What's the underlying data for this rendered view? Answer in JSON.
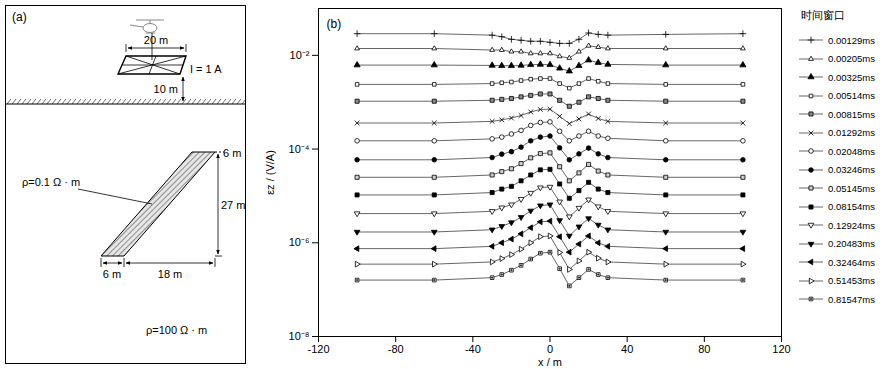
{
  "chart_data": {
    "type": "line",
    "panel_label": "(b)",
    "x_label": "x / m",
    "y_label": "εz / (V/A)",
    "legend_title": "时间窗口",
    "legend": "right",
    "log": "y",
    "grid": false,
    "xlim": [
      -120,
      120
    ],
    "xticks": [
      -120,
      -80,
      -40,
      0,
      40,
      80,
      120
    ],
    "ylim": [
      1e-08,
      0.1
    ],
    "yticks": [
      {
        "value": 1e-08,
        "label": "10⁻⁸"
      },
      {
        "value": 1e-06,
        "label": "10⁻⁶"
      },
      {
        "value": 0.0001,
        "label": "10⁻⁴"
      },
      {
        "value": 0.01,
        "label": "10⁻²"
      }
    ],
    "x": [
      -100,
      -60,
      -30,
      -25,
      -20,
      -15,
      -10,
      -5,
      0,
      5,
      10,
      15,
      20,
      25,
      30,
      60,
      100
    ],
    "series": [
      {
        "name": "0.00129ms",
        "color": "#000000",
        "marker": "plus",
        "values": [
          0.029,
          0.029,
          0.027,
          0.025,
          0.022,
          0.021,
          0.02,
          0.02,
          0.019,
          0.018,
          0.018,
          0.022,
          0.03,
          0.028,
          0.027,
          0.028,
          0.029
        ]
      },
      {
        "name": "0.00205ms",
        "color": "#000000",
        "marker": "triangle-open",
        "values": [
          0.014,
          0.014,
          0.013,
          0.013,
          0.012,
          0.012,
          0.011,
          0.011,
          0.011,
          0.0095,
          0.0088,
          0.012,
          0.016,
          0.015,
          0.014,
          0.014,
          0.014
        ]
      },
      {
        "name": "0.00325ms",
        "color": "#000000",
        "marker": "triangle",
        "values": [
          0.0062,
          0.0062,
          0.0061,
          0.006,
          0.006,
          0.0061,
          0.0063,
          0.0064,
          0.0063,
          0.0053,
          0.0046,
          0.006,
          0.0079,
          0.007,
          0.0064,
          0.0062,
          0.0062
        ]
      },
      {
        "name": "0.00514ms",
        "color": "#000000",
        "marker": "square-open",
        "values": [
          0.0024,
          0.0024,
          0.0025,
          0.0026,
          0.0027,
          0.0029,
          0.0031,
          0.0032,
          0.0032,
          0.0025,
          0.002,
          0.0025,
          0.0032,
          0.0028,
          0.0025,
          0.0024,
          0.0024
        ]
      },
      {
        "name": "0.00815ms",
        "color": "#000000",
        "marker": "square-gray",
        "values": [
          0.00105,
          0.00105,
          0.0011,
          0.00115,
          0.0012,
          0.0013,
          0.0014,
          0.0015,
          0.0015,
          0.0011,
          0.00082,
          0.001,
          0.0013,
          0.0012,
          0.0011,
          0.00105,
          0.00105
        ]
      },
      {
        "name": "0.01292ms",
        "color": "#000000",
        "marker": "times",
        "values": [
          0.00036,
          0.00036,
          0.00039,
          0.00042,
          0.00046,
          0.00052,
          0.00062,
          0.0007,
          0.00071,
          0.0005,
          0.00035,
          0.00044,
          0.00056,
          0.00045,
          0.00039,
          0.00036,
          0.00036
        ]
      },
      {
        "name": "0.02048ms",
        "color": "#000000",
        "marker": "circle-open",
        "values": [
          0.00015,
          0.00015,
          0.000165,
          0.00018,
          0.00021,
          0.00025,
          0.00032,
          0.00037,
          0.00038,
          0.00024,
          0.00015,
          0.00019,
          0.00024,
          0.00019,
          0.00017,
          0.00015,
          0.00015
        ]
      },
      {
        "name": "0.03246ms",
        "color": "#000000",
        "marker": "circle",
        "values": [
          5.9e-05,
          5.9e-05,
          6.6e-05,
          7.8e-05,
          8.8e-05,
          0.00011,
          0.00015,
          0.00018,
          0.00019,
          0.000106,
          5.9e-05,
          7.9e-05,
          0.000105,
          7.9e-05,
          6.6e-05,
          5.9e-05,
          5.9e-05
        ]
      },
      {
        "name": "0.05145ms",
        "color": "#000000",
        "marker": "square-hatched",
        "values": [
          2.5e-05,
          2.5e-05,
          2.8e-05,
          3.3e-05,
          3.8e-05,
          4.9e-05,
          6.5e-05,
          8e-05,
          8.3e-05,
          4.2e-05,
          2.1e-05,
          3.1e-05,
          4.7e-05,
          3.4e-05,
          2.8e-05,
          2.5e-05,
          2.5e-05
        ]
      },
      {
        "name": "0.08154ms",
        "color": "#000000",
        "marker": "square",
        "values": [
          1.05e-05,
          1.05e-05,
          1.18e-05,
          1.4e-05,
          1.6e-05,
          2.1e-05,
          2.8e-05,
          3.6e-05,
          3.7e-05,
          1.8e-05,
          8.9e-06,
          1.3e-05,
          1.95e-05,
          1.4e-05,
          1.18e-05,
          1.05e-05,
          1.05e-05
        ]
      },
      {
        "name": "0.12924ms",
        "color": "#000000",
        "marker": "triangle-down-open",
        "values": [
          4.2e-06,
          4.2e-06,
          4.7e-06,
          5.6e-06,
          6.5e-06,
          8.5e-06,
          1.15e-05,
          1.5e-05,
          1.55e-05,
          7.5e-06,
          3.6e-06,
          5.5e-06,
          8.3e-06,
          5.9e-06,
          4.7e-06,
          4.2e-06,
          4.2e-06
        ]
      },
      {
        "name": "0.20483ms",
        "color": "#000000",
        "marker": "triangle-down",
        "values": [
          1.7e-06,
          1.7e-06,
          1.9e-06,
          2.25e-06,
          2.7e-06,
          3.5e-06,
          4.8e-06,
          6.2e-06,
          6.5e-06,
          3e-06,
          1.4e-06,
          2.2e-06,
          3.3e-06,
          2.4e-06,
          1.9e-06,
          1.7e-06,
          1.7e-06
        ]
      },
      {
        "name": "0.32464ms",
        "color": "#000000",
        "marker": "triangle-left",
        "values": [
          7.5e-07,
          7.5e-07,
          8.4e-07,
          1e-06,
          1.2e-06,
          1.55e-06,
          2.1e-06,
          2.8e-06,
          2.9e-06,
          1.35e-06,
          6.3e-07,
          9.4e-07,
          1.4e-06,
          1e-06,
          8.4e-07,
          7.5e-07,
          7.5e-07
        ]
      },
      {
        "name": "0.51453ms",
        "color": "#000000",
        "marker": "triangle-right-open",
        "values": [
          3.5e-07,
          3.5e-07,
          3.9e-07,
          4.6e-07,
          5.6e-07,
          7.3e-07,
          1e-06,
          1.35e-06,
          1.4e-06,
          6.2e-07,
          2.7e-07,
          4.1e-07,
          6.3e-07,
          4.7e-07,
          3.9e-07,
          3.5e-07,
          3.5e-07
        ]
      },
      {
        "name": "0.81547ms",
        "color": "#000000",
        "marker": "square-dot",
        "values": [
          1.6e-07,
          1.6e-07,
          1.8e-07,
          2.1e-07,
          2.6e-07,
          3.3e-07,
          4.5e-07,
          6e-07,
          6.3e-07,
          2.8e-07,
          1.2e-07,
          1.8e-07,
          2.7e-07,
          2.1e-07,
          1.8e-07,
          1.6e-07,
          1.6e-07
        ]
      }
    ]
  },
  "diagram": {
    "panel_label": "(a)",
    "loop": {
      "width_label": "20 m",
      "current_label": "I = 1 A",
      "height_label": "10 m"
    },
    "dike": {
      "resistivity_label": "ρ=0.1 Ω · m",
      "top_depth_label": "6 m",
      "depth_extent_label": "27 m",
      "width_label": "6 m",
      "offset_label": "18 m"
    },
    "host": {
      "resistivity_label": "ρ=100 Ω · m"
    }
  }
}
